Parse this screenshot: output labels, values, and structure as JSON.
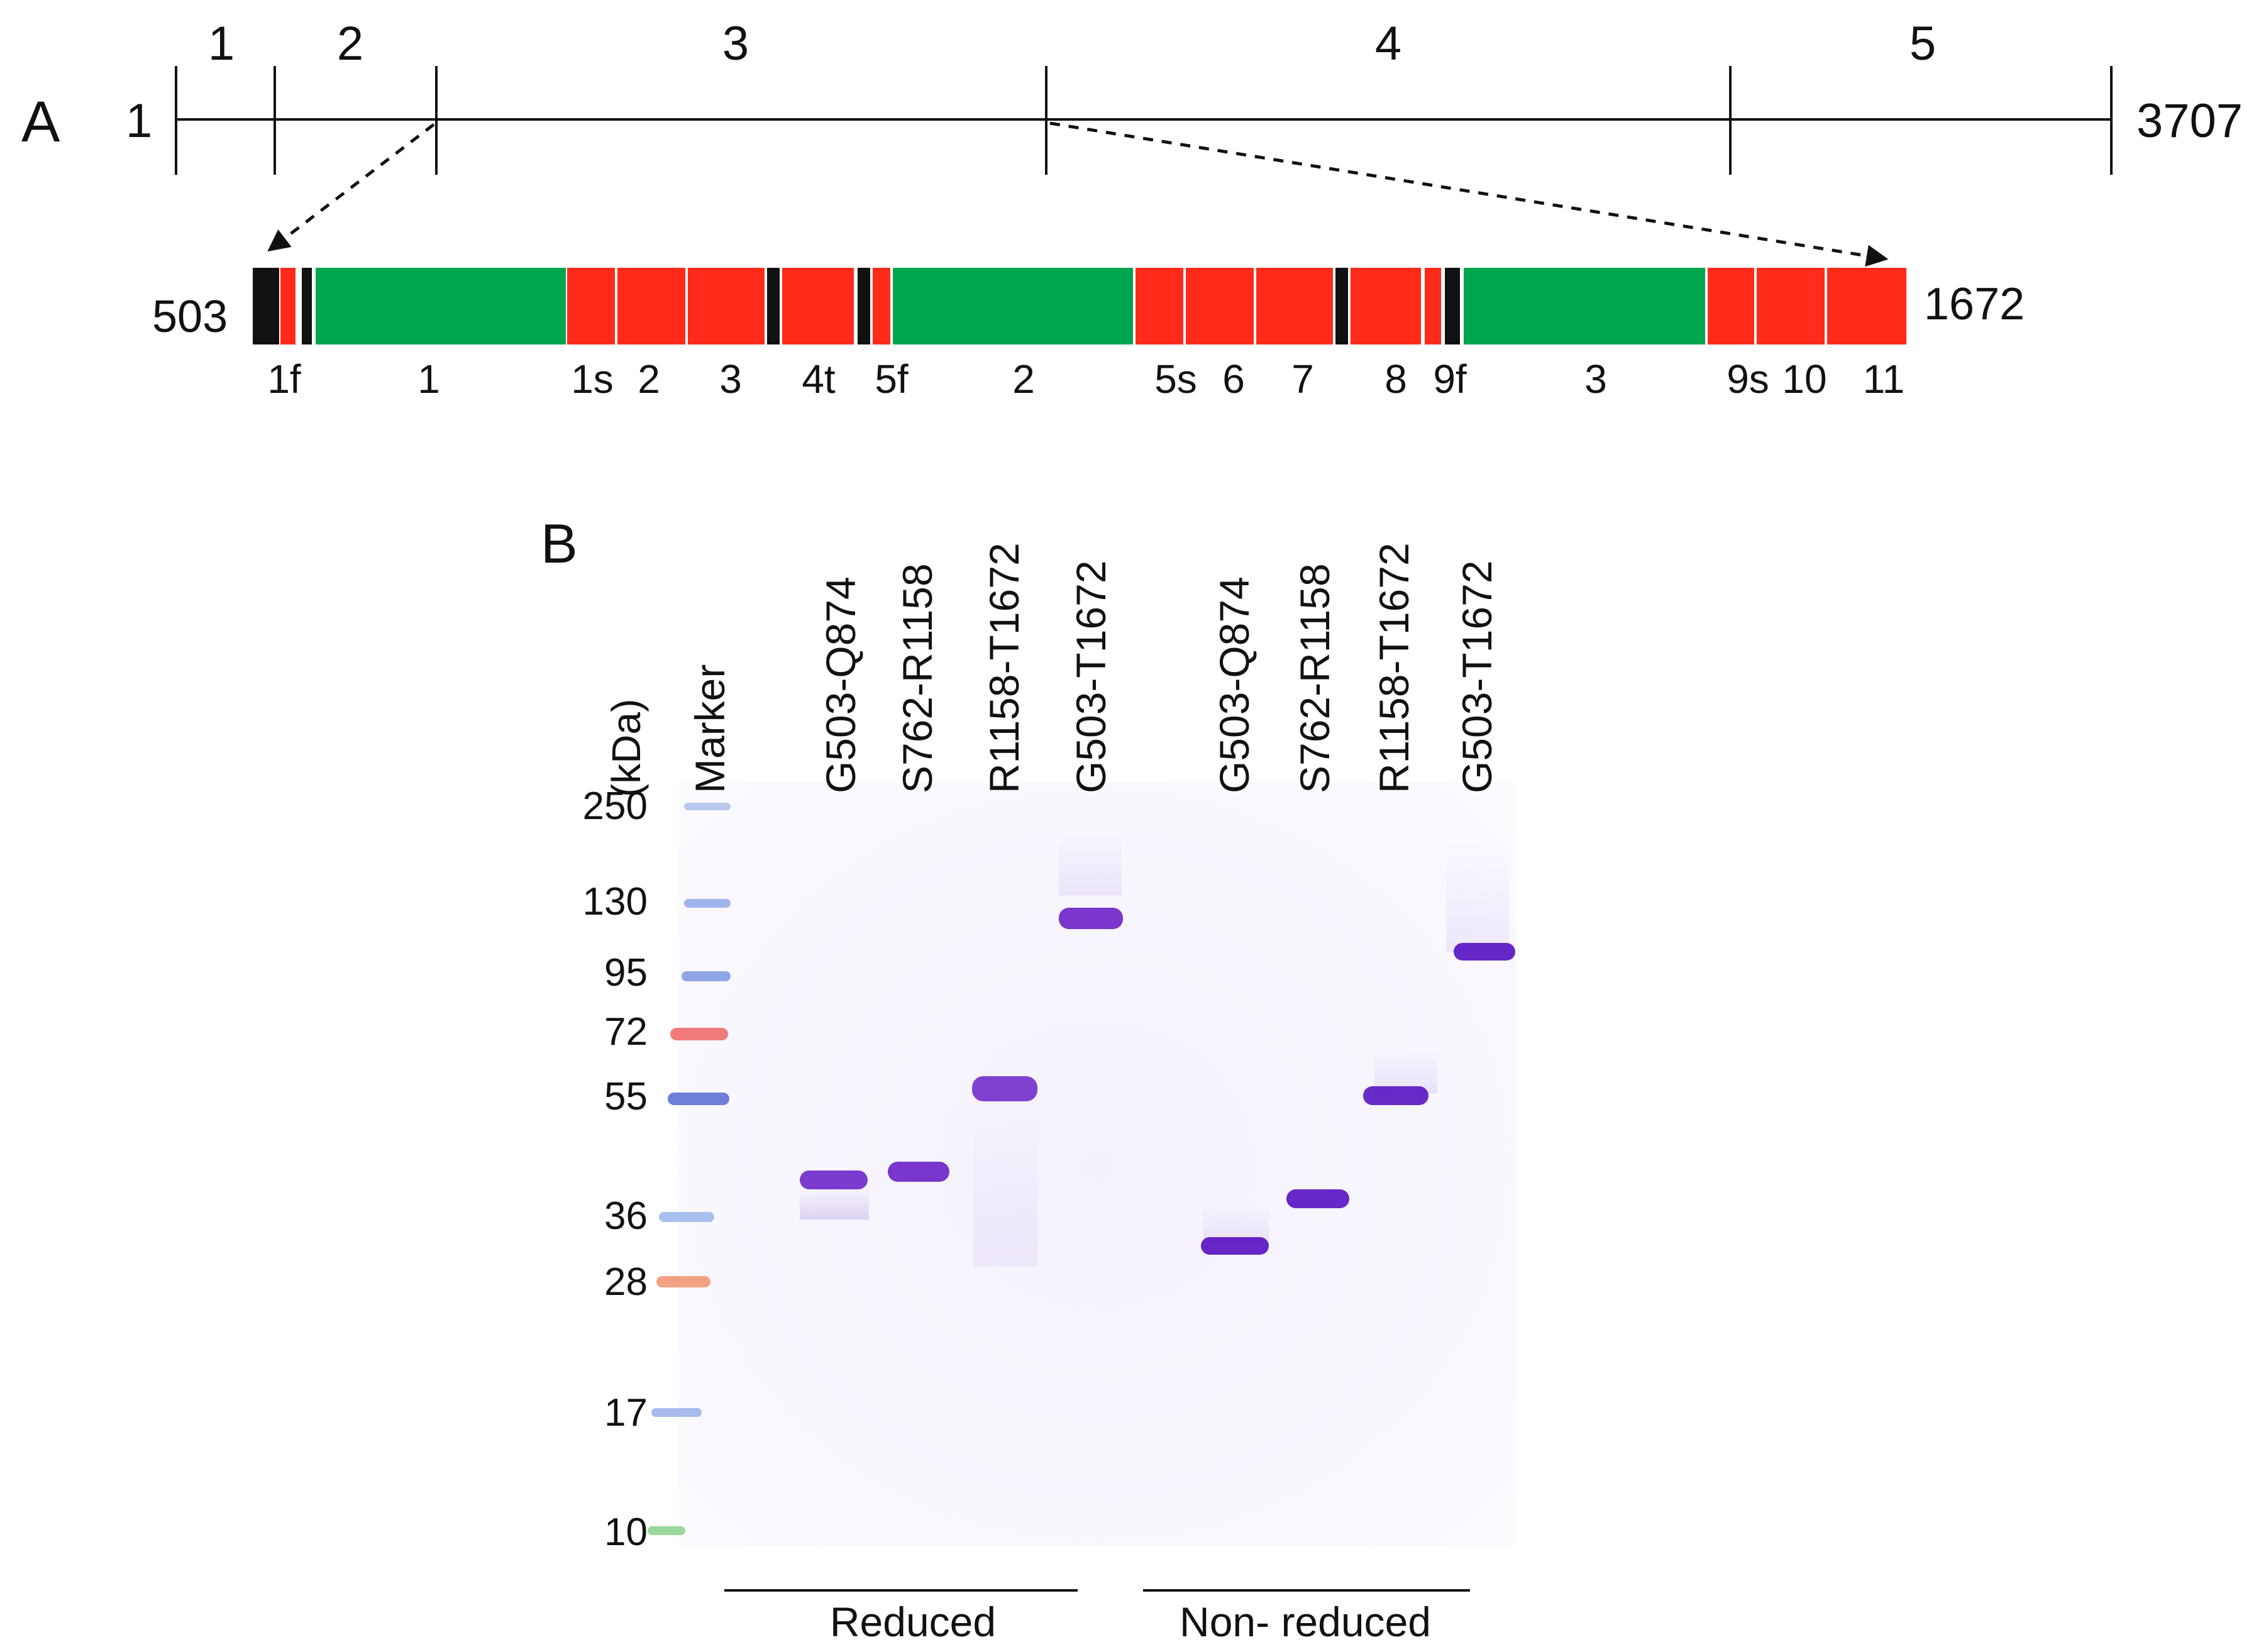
{
  "panel_a": {
    "label": "A",
    "axis_start": "1",
    "axis_end": "3707",
    "regions": [
      "1",
      "2",
      "3",
      "4",
      "5"
    ],
    "construct_start": "503",
    "construct_end": "1672",
    "segment_labels": [
      "1f",
      "1",
      "1s",
      "2",
      "3",
      "4t",
      "5f",
      "2",
      "5s",
      "6",
      "7",
      "8",
      "9f",
      "3",
      "9s",
      "10",
      "11"
    ],
    "colors": {
      "red": "#ff2b1a",
      "green": "#00a550",
      "black": "#111111"
    }
  },
  "panel_b": {
    "label": "B",
    "unit_label": "(kDa)",
    "marker_label": "Marker",
    "lane_labels": [
      "G503-Q874",
      "S762-R1158",
      "R1158-T1672",
      "G503-T1672",
      "G503-Q874",
      "S762-R1158",
      "R1158-T1672",
      "G503-T1672"
    ],
    "marker_sizes": [
      "250",
      "130",
      "95",
      "72",
      "55",
      "36",
      "28",
      "17",
      "10"
    ],
    "group_labels": [
      "Reduced",
      "Non- reduced"
    ],
    "band_color": "#6b21c8"
  }
}
